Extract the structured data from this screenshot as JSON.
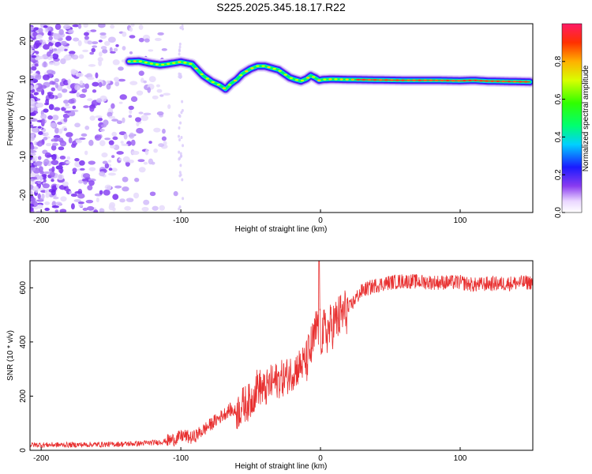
{
  "title": "S225.2025.345.18.17.R22",
  "chart_data": [
    {
      "type": "heatmap",
      "xlabel": "Height of straight line (km)",
      "ylabel": "Frequency (Hz)",
      "xlim": [
        -208,
        152
      ],
      "ylim": [
        -24.5,
        24.5
      ],
      "xticks": [
        -200,
        -100,
        0,
        100
      ],
      "yticks": [
        20,
        10,
        0,
        -10,
        -20
      ],
      "ridge": {
        "x": [
          -137,
          -130,
          -122,
          -115,
          -110,
          -105,
          -100,
          -92,
          -88,
          -84,
          -78,
          -72,
          -68,
          -64,
          -60,
          -56,
          -50,
          -45,
          -40,
          -35,
          -30,
          -26,
          -22,
          -18,
          -14,
          -10,
          -7,
          -4,
          -1,
          2,
          8,
          20,
          40,
          60,
          80,
          100,
          110,
          120,
          135,
          150
        ],
        "y": [
          14.7,
          14.8,
          14.2,
          13.8,
          14.0,
          14.3,
          14.6,
          14.0,
          12.5,
          11.0,
          9.5,
          8.5,
          7.5,
          9.0,
          10.0,
          11.5,
          12.8,
          13.5,
          13.5,
          13.0,
          12.5,
          11.5,
          10.5,
          10.0,
          9.6,
          10.2,
          11.0,
          10.5,
          9.8,
          10.0,
          10.1,
          10.0,
          9.9,
          9.8,
          9.8,
          9.7,
          9.8,
          9.6,
          9.5,
          9.4
        ]
      },
      "colorbar": {
        "label": "Normalized spectral amplitude",
        "ticks": [
          0.0,
          0.2,
          0.4,
          0.6,
          0.8
        ],
        "range": [
          0,
          1
        ]
      }
    },
    {
      "type": "line",
      "xlabel": "Height of straight line (km)",
      "ylabel": "SNR (10 * v/v)",
      "xlim": [
        -208,
        152
      ],
      "ylim": [
        0,
        700
      ],
      "xticks": [
        -200,
        -100,
        0,
        100
      ],
      "yticks": [
        0,
        200,
        400,
        600
      ],
      "color": "#e83030",
      "series": [
        {
          "x": [
            -208,
            -180,
            -150,
            -130,
            -115,
            -105,
            -98,
            -92,
            -85,
            -80,
            -75,
            -70,
            -65,
            -60,
            -55,
            -50,
            -45,
            -40,
            -35,
            -30,
            -25,
            -20,
            -15,
            -10,
            -5,
            -2,
            0,
            5,
            10,
            15,
            20,
            25,
            30,
            35,
            40,
            50,
            60,
            80,
            100,
            110,
            120,
            130,
            150
          ],
          "y": [
            20,
            20,
            22,
            25,
            30,
            40,
            55,
            45,
            70,
            90,
            110,
            130,
            150,
            140,
            170,
            180,
            240,
            220,
            250,
            260,
            270,
            290,
            310,
            330,
            400,
            470,
            430,
            440,
            470,
            500,
            520,
            560,
            590,
            600,
            610,
            620,
            625,
            620,
            620,
            610,
            615,
            615,
            620
          ]
        }
      ],
      "annotations": [
        {
          "x": -1,
          "y": 700,
          "note": "spike"
        }
      ]
    }
  ]
}
